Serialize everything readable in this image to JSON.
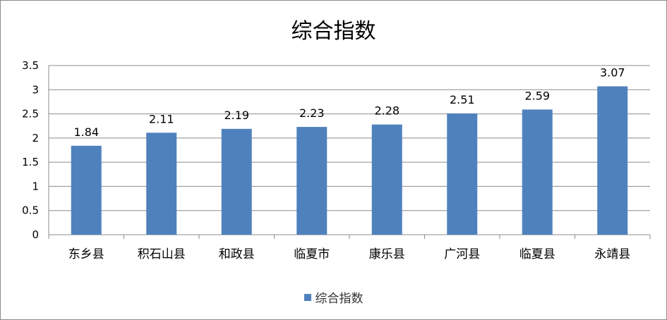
{
  "chart_data": {
    "type": "bar",
    "title": "综合指数",
    "categories": [
      "东乡县",
      "积石山县",
      "和政县",
      "临夏市",
      "康乐县",
      "广河县",
      "临夏县",
      "永靖县"
    ],
    "series": [
      {
        "name": "综合指数",
        "values": [
          1.84,
          2.11,
          2.19,
          2.23,
          2.28,
          2.51,
          2.59,
          3.07
        ],
        "color": "#4f81bd"
      }
    ],
    "value_labels": [
      "1.84",
      "2.11",
      "2.19",
      "2.23",
      "2.28",
      "2.51",
      "2.59",
      "3.07"
    ],
    "ylim": [
      0,
      3.5
    ],
    "y_ticks": [
      0,
      0.5,
      1,
      1.5,
      2,
      2.5,
      3,
      3.5
    ],
    "y_tick_labels": [
      "0",
      "0.5",
      "1",
      "1.5",
      "2",
      "2.5",
      "3",
      "3.5"
    ],
    "grid": true,
    "legend_position": "bottom",
    "xlabel": "",
    "ylabel": ""
  }
}
